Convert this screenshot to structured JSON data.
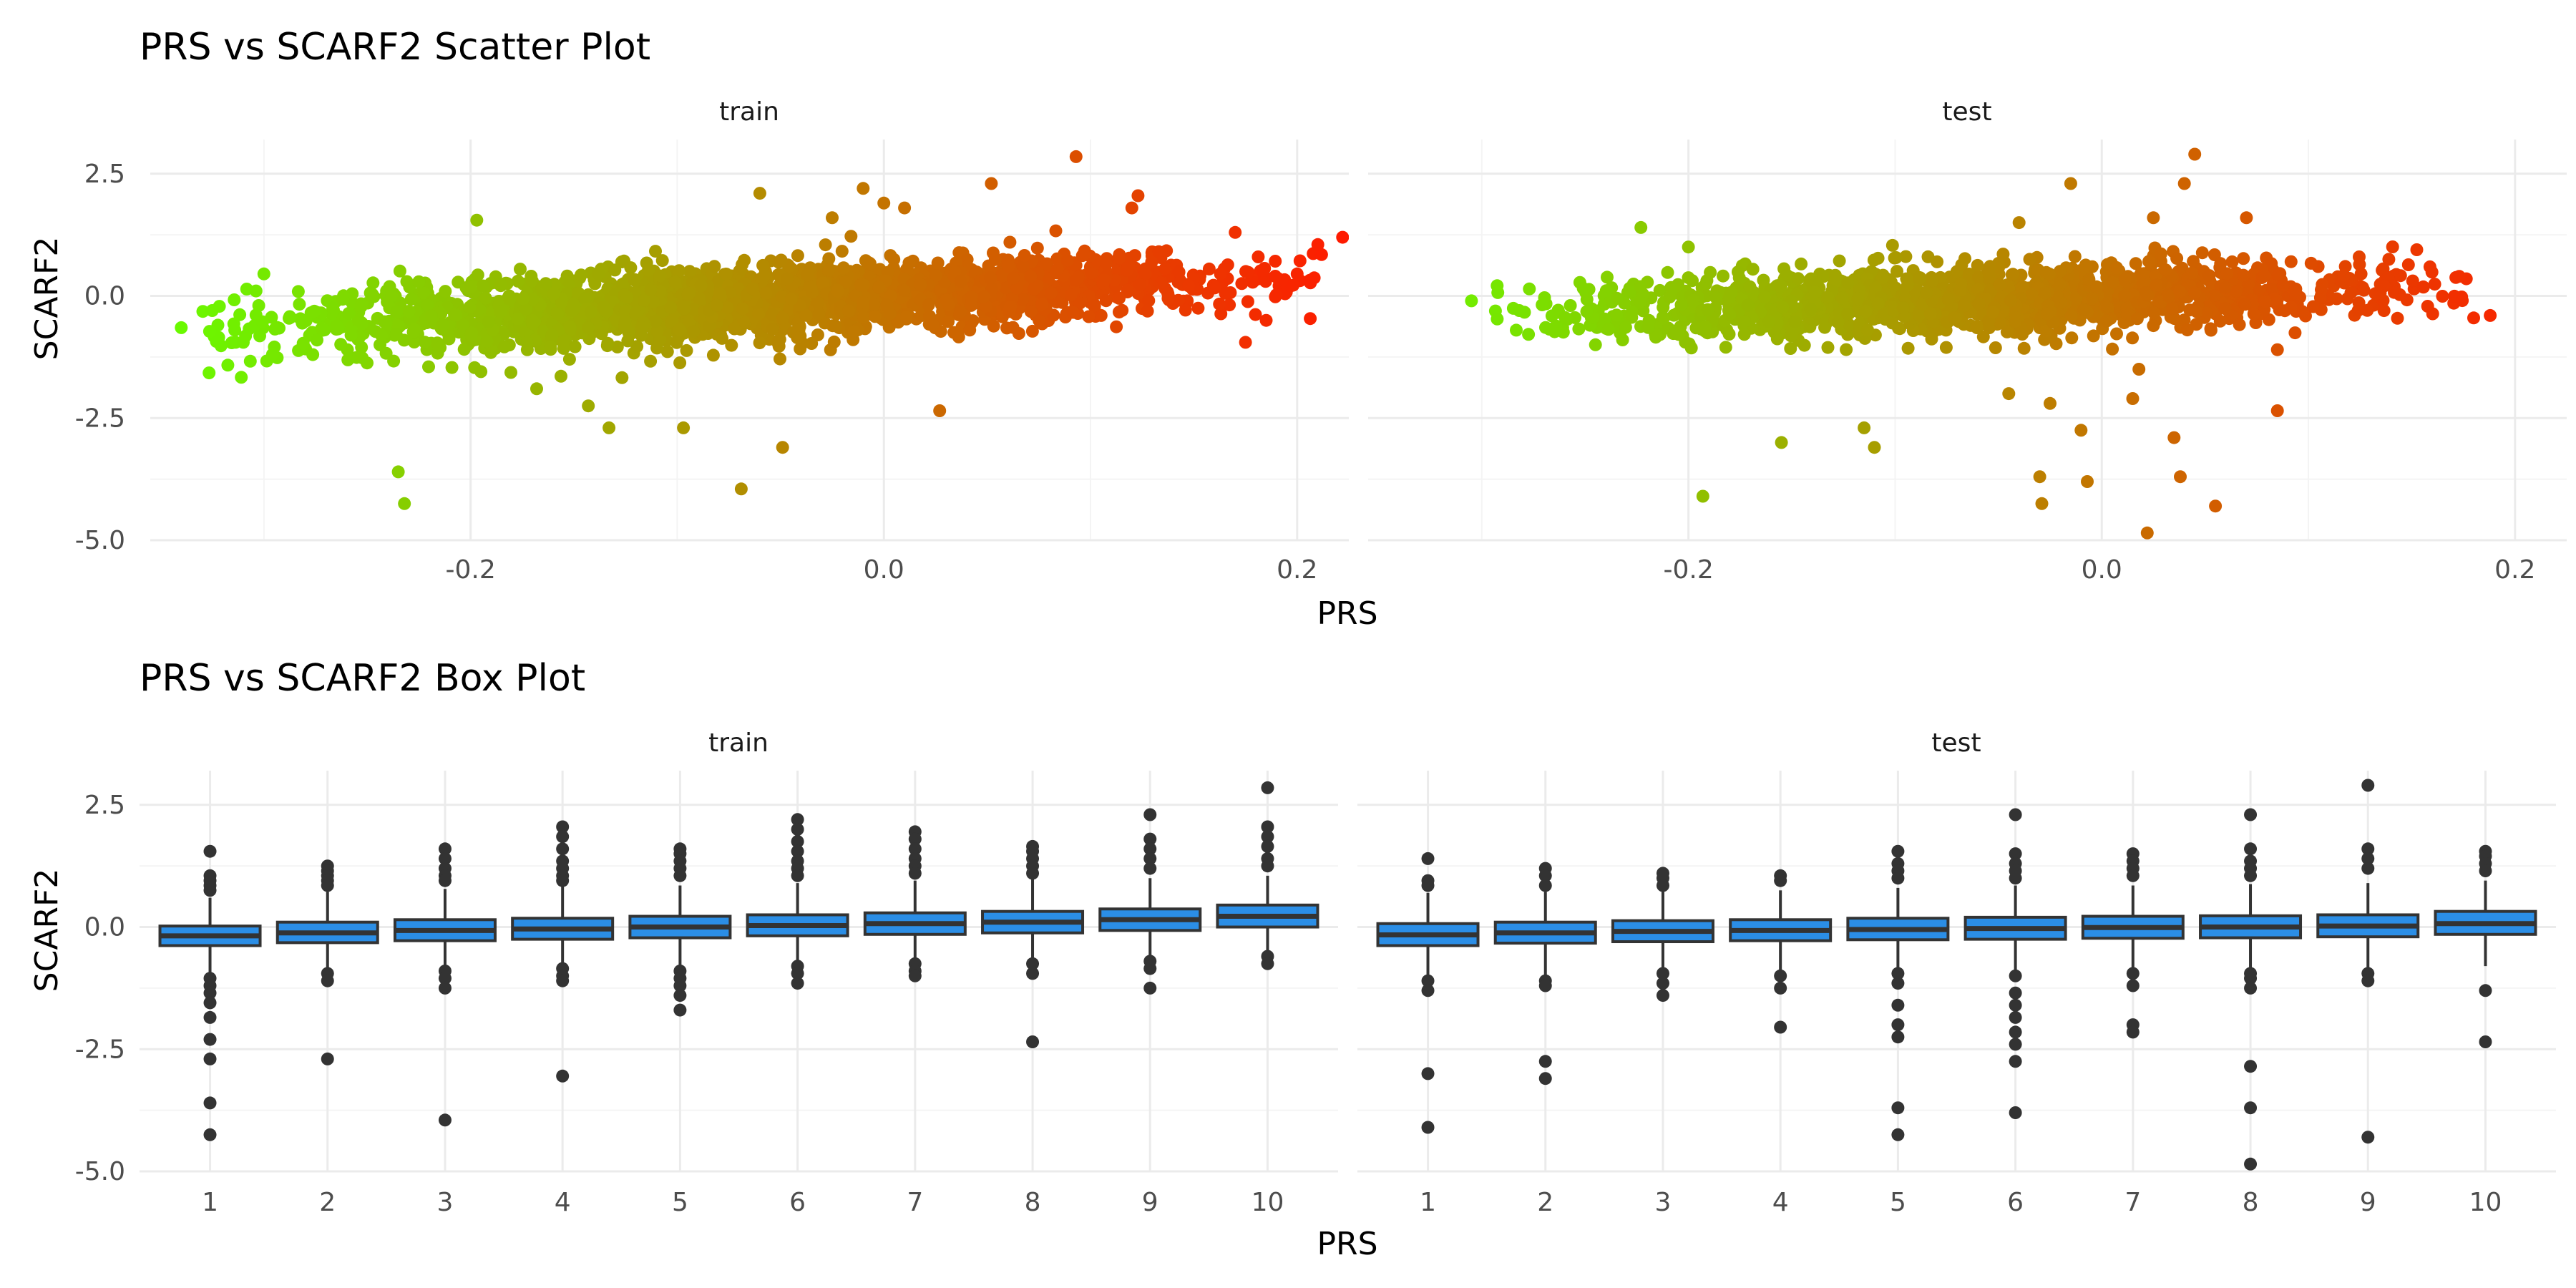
{
  "colors": {
    "low": "#66ff00",
    "high": "#ff1a00",
    "box_fill": "#2b8ee6",
    "box_line": "#333333"
  },
  "chart_data": [
    {
      "type": "scatter",
      "title": "PRS vs SCARF2 Scatter Plot",
      "xlabel": "PRS",
      "ylabel": "SCARF2",
      "facets": [
        "train",
        "test"
      ],
      "xlim": [
        -0.355,
        0.225
      ],
      "ylim": [
        -5.0,
        3.2
      ],
      "xticks": [
        -0.2,
        0.0,
        0.2
      ],
      "xtick_labels": [
        "-0.2",
        "0.0",
        "0.2"
      ],
      "yticks": [
        2.5,
        0.0,
        -2.5,
        -5.0
      ],
      "ytick_labels": [
        "2.5",
        "0.0",
        "-2.5",
        "-5.0"
      ],
      "color_by": "PRS",
      "grid": true,
      "trend": {
        "slope": 2.1,
        "intercept": 0.0,
        "spread": 0.35
      },
      "panels": [
        {
          "facet": "train",
          "x_range": [
            -0.34,
            0.222
          ],
          "outliers": [
            {
              "x": -0.34,
              "y": -0.65
            },
            {
              "x": -0.325,
              "y": -0.3
            },
            {
              "x": -0.31,
              "y": -0.95
            },
            {
              "x": -0.3,
              "y": 0.45
            },
            {
              "x": -0.235,
              "y": -3.6
            },
            {
              "x": -0.232,
              "y": -4.25
            },
            {
              "x": -0.197,
              "y": 1.55
            },
            {
              "x": -0.195,
              "y": -1.55
            },
            {
              "x": -0.168,
              "y": -1.9
            },
            {
              "x": -0.143,
              "y": -2.25
            },
            {
              "x": -0.133,
              "y": -2.7
            },
            {
              "x": -0.097,
              "y": -2.7
            },
            {
              "x": -0.069,
              "y": -3.95
            },
            {
              "x": -0.06,
              "y": 2.1
            },
            {
              "x": -0.049,
              "y": -3.1
            },
            {
              "x": -0.025,
              "y": 1.6
            },
            {
              "x": -0.01,
              "y": 2.2
            },
            {
              "x": 0.0,
              "y": 1.9
            },
            {
              "x": 0.01,
              "y": 1.8
            },
            {
              "x": 0.027,
              "y": -2.35
            },
            {
              "x": 0.052,
              "y": 2.3
            },
            {
              "x": 0.093,
              "y": 2.85
            },
            {
              "x": 0.12,
              "y": 1.8
            },
            {
              "x": 0.123,
              "y": 2.05
            },
            {
              "x": 0.17,
              "y": 1.3
            },
            {
              "x": 0.175,
              "y": -0.95
            },
            {
              "x": 0.185,
              "y": -0.5
            },
            {
              "x": 0.2,
              "y": 0.45
            },
            {
              "x": 0.21,
              "y": 1.05
            },
            {
              "x": 0.222,
              "y": 1.2
            }
          ]
        },
        {
          "facet": "test",
          "x_range": [
            -0.305,
            0.188
          ],
          "outliers": [
            {
              "x": -0.305,
              "y": -0.1
            },
            {
              "x": -0.245,
              "y": -1.0
            },
            {
              "x": -0.223,
              "y": 1.4
            },
            {
              "x": -0.2,
              "y": 1.0
            },
            {
              "x": -0.193,
              "y": -4.1
            },
            {
              "x": -0.155,
              "y": -3.0
            },
            {
              "x": -0.115,
              "y": -2.7
            },
            {
              "x": -0.11,
              "y": -3.1
            },
            {
              "x": -0.045,
              "y": -2.0
            },
            {
              "x": -0.04,
              "y": 1.5
            },
            {
              "x": -0.03,
              "y": -3.7
            },
            {
              "x": -0.029,
              "y": -4.25
            },
            {
              "x": -0.025,
              "y": -2.2
            },
            {
              "x": -0.015,
              "y": 2.3
            },
            {
              "x": -0.01,
              "y": -2.75
            },
            {
              "x": -0.007,
              "y": -3.8
            },
            {
              "x": 0.015,
              "y": -2.1
            },
            {
              "x": 0.018,
              "y": -1.5
            },
            {
              "x": 0.022,
              "y": -4.85
            },
            {
              "x": 0.025,
              "y": 1.6
            },
            {
              "x": 0.035,
              "y": -2.9
            },
            {
              "x": 0.038,
              "y": -3.7
            },
            {
              "x": 0.04,
              "y": 2.3
            },
            {
              "x": 0.045,
              "y": 2.9
            },
            {
              "x": 0.055,
              "y": -4.3
            },
            {
              "x": 0.07,
              "y": 1.6
            },
            {
              "x": 0.085,
              "y": -2.35
            },
            {
              "x": 0.085,
              "y": -1.1
            },
            {
              "x": 0.173,
              "y": 0.4
            },
            {
              "x": 0.18,
              "y": -0.45
            },
            {
              "x": 0.188,
              "y": -0.4
            }
          ]
        }
      ]
    },
    {
      "type": "box",
      "title": "PRS vs SCARF2 Box Plot",
      "xlabel": "PRS",
      "ylabel": "SCARF2",
      "facets": [
        "train",
        "test"
      ],
      "categories": [
        "1",
        "2",
        "3",
        "4",
        "5",
        "6",
        "7",
        "8",
        "9",
        "10"
      ],
      "ylim": [
        -5.0,
        3.2
      ],
      "yticks": [
        2.5,
        0.0,
        -2.5,
        -5.0
      ],
      "ytick_labels": [
        "2.5",
        "0.0",
        "-2.5",
        "-5.0"
      ],
      "grid": true,
      "panels": [
        {
          "facet": "train",
          "boxes": [
            {
              "q1": -0.38,
              "med": -0.18,
              "q3": 0.02,
              "lo": -0.95,
              "hi": 0.6,
              "out": [
                1.55,
                1.05,
                0.95,
                0.85,
                0.75,
                -1.05,
                -1.2,
                -1.35,
                -1.55,
                -1.85,
                -2.3,
                -2.7,
                -3.6,
                -4.25
              ]
            },
            {
              "q1": -0.32,
              "med": -0.12,
              "q3": 0.1,
              "lo": -0.92,
              "hi": 0.72,
              "out": [
                1.25,
                1.15,
                1.05,
                0.95,
                0.85,
                -0.95,
                -1.1,
                -2.7
              ]
            },
            {
              "q1": -0.28,
              "med": -0.07,
              "q3": 0.15,
              "lo": -0.85,
              "hi": 0.78,
              "out": [
                1.6,
                1.4,
                1.2,
                1.05,
                0.95,
                -0.9,
                -1.05,
                -1.25,
                -3.95
              ]
            },
            {
              "q1": -0.25,
              "med": -0.04,
              "q3": 0.18,
              "lo": -0.82,
              "hi": 0.82,
              "out": [
                2.05,
                1.85,
                1.6,
                1.35,
                1.2,
                1.05,
                0.95,
                -0.85,
                -1.0,
                -1.1,
                -3.05
              ]
            },
            {
              "q1": -0.22,
              "med": 0.0,
              "q3": 0.22,
              "lo": -0.85,
              "hi": 0.85,
              "out": [
                1.6,
                1.5,
                1.35,
                1.2,
                1.05,
                -0.9,
                -1.05,
                -1.2,
                -1.4,
                -1.7
              ]
            },
            {
              "q1": -0.18,
              "med": 0.03,
              "q3": 0.25,
              "lo": -0.75,
              "hi": 0.9,
              "out": [
                2.2,
                2.0,
                1.75,
                1.55,
                1.35,
                1.2,
                1.05,
                -0.8,
                -0.95,
                -1.15
              ]
            },
            {
              "q1": -0.15,
              "med": 0.07,
              "q3": 0.29,
              "lo": -0.72,
              "hi": 0.95,
              "out": [
                1.95,
                1.8,
                1.6,
                1.4,
                1.25,
                1.1,
                -0.75,
                -0.9,
                -1.0
              ]
            },
            {
              "q1": -0.12,
              "med": 0.1,
              "q3": 0.32,
              "lo": -0.7,
              "hi": 0.98,
              "out": [
                1.65,
                1.55,
                1.4,
                1.25,
                1.1,
                -0.75,
                -0.95,
                -2.35
              ]
            },
            {
              "q1": -0.07,
              "med": 0.15,
              "q3": 0.37,
              "lo": -0.65,
              "hi": 1.0,
              "out": [
                2.3,
                1.8,
                1.6,
                1.4,
                1.2,
                -0.7,
                -0.85,
                -1.25
              ]
            },
            {
              "q1": 0.0,
              "med": 0.22,
              "q3": 0.45,
              "lo": -0.58,
              "hi": 1.05,
              "out": [
                2.85,
                2.05,
                1.85,
                1.65,
                1.4,
                1.25,
                -0.6,
                -0.75
              ]
            }
          ]
        },
        {
          "facet": "test",
          "boxes": [
            {
              "q1": -0.38,
              "med": -0.16,
              "q3": 0.07,
              "lo": -1.0,
              "hi": 0.7,
              "out": [
                1.4,
                0.95,
                0.85,
                -1.1,
                -1.3,
                -3.0,
                -4.1
              ]
            },
            {
              "q1": -0.33,
              "med": -0.12,
              "q3": 0.1,
              "lo": -1.0,
              "hi": 0.72,
              "out": [
                1.2,
                1.05,
                0.85,
                -1.1,
                -1.2,
                -2.75,
                -3.1
              ]
            },
            {
              "q1": -0.3,
              "med": -0.09,
              "q3": 0.13,
              "lo": -0.9,
              "hi": 0.75,
              "out": [
                1.1,
                1.0,
                0.85,
                -0.95,
                -1.15,
                -1.4
              ]
            },
            {
              "q1": -0.28,
              "med": -0.07,
              "q3": 0.15,
              "lo": -0.9,
              "hi": 0.75,
              "out": [
                1.05,
                0.95,
                -1.0,
                -1.25,
                -2.05
              ]
            },
            {
              "q1": -0.26,
              "med": -0.05,
              "q3": 0.18,
              "lo": -0.9,
              "hi": 0.8,
              "out": [
                1.55,
                1.3,
                1.15,
                1.0,
                -0.95,
                -1.15,
                -1.6,
                -2.0,
                -2.25,
                -3.7,
                -4.25
              ]
            },
            {
              "q1": -0.25,
              "med": -0.03,
              "q3": 0.2,
              "lo": -0.9,
              "hi": 0.85,
              "out": [
                2.3,
                1.5,
                1.3,
                1.15,
                1.0,
                -1.0,
                -1.35,
                -1.6,
                -1.85,
                -2.15,
                -2.4,
                -2.75,
                -3.8
              ]
            },
            {
              "q1": -0.23,
              "med": -0.01,
              "q3": 0.22,
              "lo": -0.88,
              "hi": 0.85,
              "out": [
                1.5,
                1.35,
                1.2,
                1.05,
                -0.95,
                -1.2,
                -2.0,
                -2.15
              ]
            },
            {
              "q1": -0.22,
              "med": 0.0,
              "q3": 0.23,
              "lo": -0.85,
              "hi": 0.88,
              "out": [
                2.3,
                1.6,
                1.35,
                1.2,
                1.05,
                -0.95,
                -1.05,
                -1.25,
                -2.85,
                -3.7,
                -4.85
              ]
            },
            {
              "q1": -0.2,
              "med": 0.02,
              "q3": 0.25,
              "lo": -0.85,
              "hi": 0.9,
              "out": [
                2.9,
                1.6,
                1.4,
                1.2,
                -0.95,
                -1.1,
                -4.3
              ]
            },
            {
              "q1": -0.15,
              "med": 0.07,
              "q3": 0.32,
              "lo": -0.8,
              "hi": 0.95,
              "out": [
                1.55,
                1.45,
                1.3,
                1.15,
                -1.3,
                -2.35
              ]
            }
          ]
        }
      ]
    }
  ]
}
